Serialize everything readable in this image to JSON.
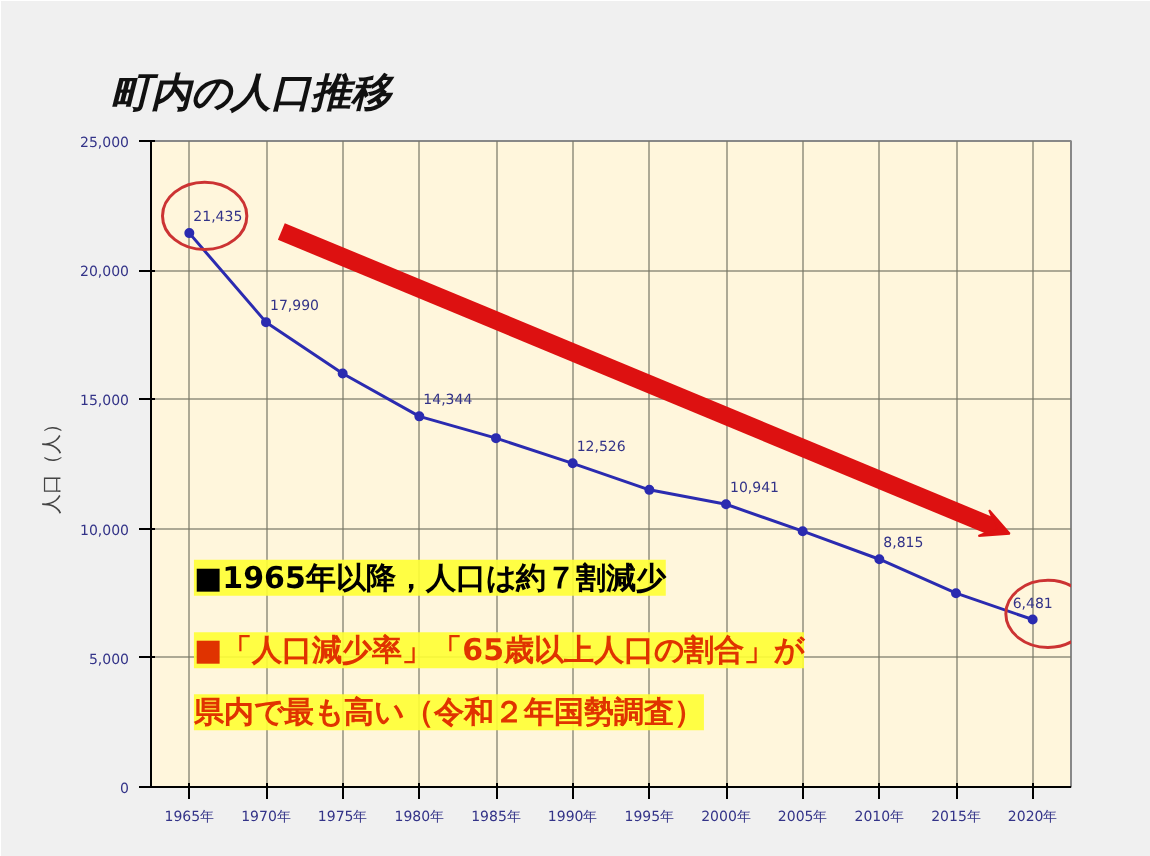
{
  "chart_data": {
    "type": "line",
    "title": "町内の人口推移",
    "ylabel": "人口（人）",
    "x": [
      1965,
      1970,
      1975,
      1980,
      1985,
      1990,
      1995,
      2000,
      2005,
      2010,
      2015,
      2020
    ],
    "series": [
      {
        "color": "#2b2bb0",
        "values": [
          21435,
          17990,
          16000,
          14344,
          13500,
          12526,
          11500,
          10941,
          9900,
          8815,
          7500,
          6481
        ],
        "value_labels": [
          "21,435",
          "17,990",
          null,
          "14,344",
          null,
          "12,526",
          null,
          "10,941",
          null,
          "8,815",
          null,
          "6,481"
        ]
      }
    ],
    "xlim": [
      1962.5,
      2022.5
    ],
    "xticks": [
      {
        "value": 1965,
        "label": "1965年"
      },
      {
        "value": 1970,
        "label": "1970年"
      },
      {
        "value": 1975,
        "label": "1975年"
      },
      {
        "value": 1980,
        "label": "1980年"
      },
      {
        "value": 1985,
        "label": "1985年"
      },
      {
        "value": 1990,
        "label": "1990年"
      },
      {
        "value": 1995,
        "label": "1995年"
      },
      {
        "value": 2000,
        "label": "2000年"
      },
      {
        "value": 2005,
        "label": "2005年"
      },
      {
        "value": 2010,
        "label": "2010年"
      },
      {
        "value": 2015,
        "label": "2015年"
      },
      {
        "value": 2020,
        "label": "2020年"
      }
    ],
    "ylim": [
      0,
      25000
    ],
    "yticks": [
      {
        "value": 0,
        "label": "0"
      },
      {
        "value": 5000,
        "label": "5,000"
      },
      {
        "value": 10000,
        "label": "10,000"
      },
      {
        "value": 15000,
        "label": "15,000"
      },
      {
        "value": 20000,
        "label": "20,000"
      },
      {
        "value": 25000,
        "label": "25,000"
      }
    ],
    "grid": true,
    "marker": "circle",
    "line_style": "solid",
    "annotations": [
      "■1965年以降，人口は約７割減少",
      "■「人口減少率」「65歳以上人口の割合」が",
      "県内で最も高い（令和２年国勢調査）"
    ]
  }
}
